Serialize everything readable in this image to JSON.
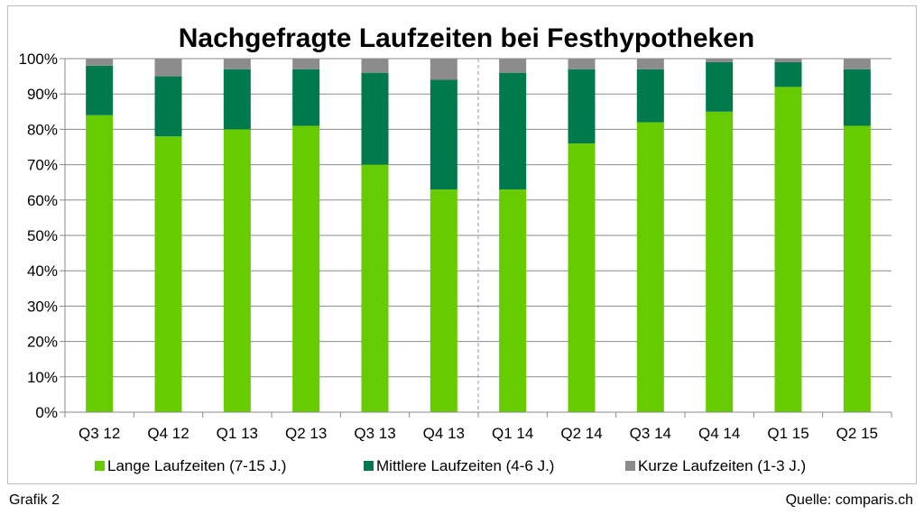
{
  "chart_data": {
    "type": "bar",
    "stacked": true,
    "title": "Nachgefragte Laufzeiten bei Festhypotheken",
    "categories": [
      "Q3 12",
      "Q4 12",
      "Q1 13",
      "Q2 13",
      "Q3 13",
      "Q4 13",
      "Q1 14",
      "Q2 14",
      "Q3 14",
      "Q4 14",
      "Q1 15",
      "Q2 15"
    ],
    "series": [
      {
        "name": "Lange Laufzeiten (7-15 J.)",
        "color": "#66cc00",
        "values": [
          84,
          78,
          80,
          81,
          70,
          63,
          63,
          76,
          82,
          85,
          92,
          81
        ]
      },
      {
        "name": "Mittlere Laufzeiten (4-6 J.)",
        "color": "#007a4d",
        "values": [
          14,
          17,
          17,
          16,
          26,
          31,
          33,
          21,
          15,
          14,
          7,
          16
        ]
      },
      {
        "name": "Kurze Laufzeiten (1-3 J.)",
        "color": "#8c8c8c",
        "values": [
          2,
          5,
          3,
          3,
          4,
          6,
          4,
          3,
          3,
          1,
          1,
          3
        ]
      }
    ],
    "ylim": [
      0,
      100
    ],
    "yticks": [
      "0%",
      "10%",
      "20%",
      "30%",
      "40%",
      "50%",
      "60%",
      "70%",
      "80%",
      "90%",
      "100%"
    ],
    "grid": true,
    "legend_position": "bottom",
    "divider_after_category": "Q4 13"
  },
  "footer": {
    "left": "Grafik 2",
    "right": "Quelle: comparis.ch"
  }
}
